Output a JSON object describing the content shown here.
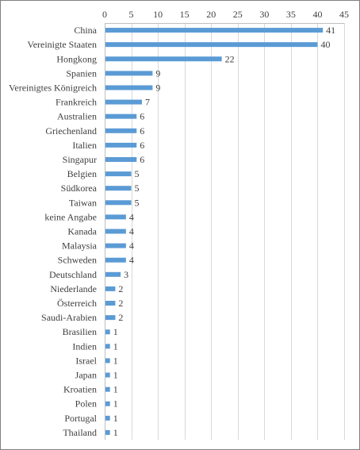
{
  "chart_data": {
    "type": "bar",
    "orientation": "horizontal",
    "title": "",
    "xlabel": "",
    "ylabel": "",
    "xlim": [
      0,
      45
    ],
    "x_ticks": [
      0,
      5,
      10,
      15,
      20,
      25,
      30,
      35,
      40,
      45
    ],
    "x_axis_position": "top",
    "grid": "vertical",
    "bar_color": "#5B9BD5",
    "data_labels": true,
    "categories": [
      "China",
      "Vereinigte Staaten",
      "Hongkong",
      "Spanien",
      "Vereinigtes Königreich",
      "Frankreich",
      "Australien",
      "Griechenland",
      "Italien",
      "Singapur",
      "Belgien",
      "Südkorea",
      "Taiwan",
      "keine Angabe",
      "Kanada",
      "Malaysia",
      "Schweden",
      "Deutschland",
      "Niederlande",
      "Österreich",
      "Saudi-Arabien",
      "Brasilien",
      "Indien",
      "Israel",
      "Japan",
      "Kroatien",
      "Polen",
      "Portugal",
      "Thailand"
    ],
    "values": [
      41,
      40,
      22,
      9,
      9,
      7,
      6,
      6,
      6,
      6,
      5,
      5,
      5,
      4,
      4,
      4,
      4,
      3,
      2,
      2,
      2,
      1,
      1,
      1,
      1,
      1,
      1,
      1,
      1
    ]
  }
}
